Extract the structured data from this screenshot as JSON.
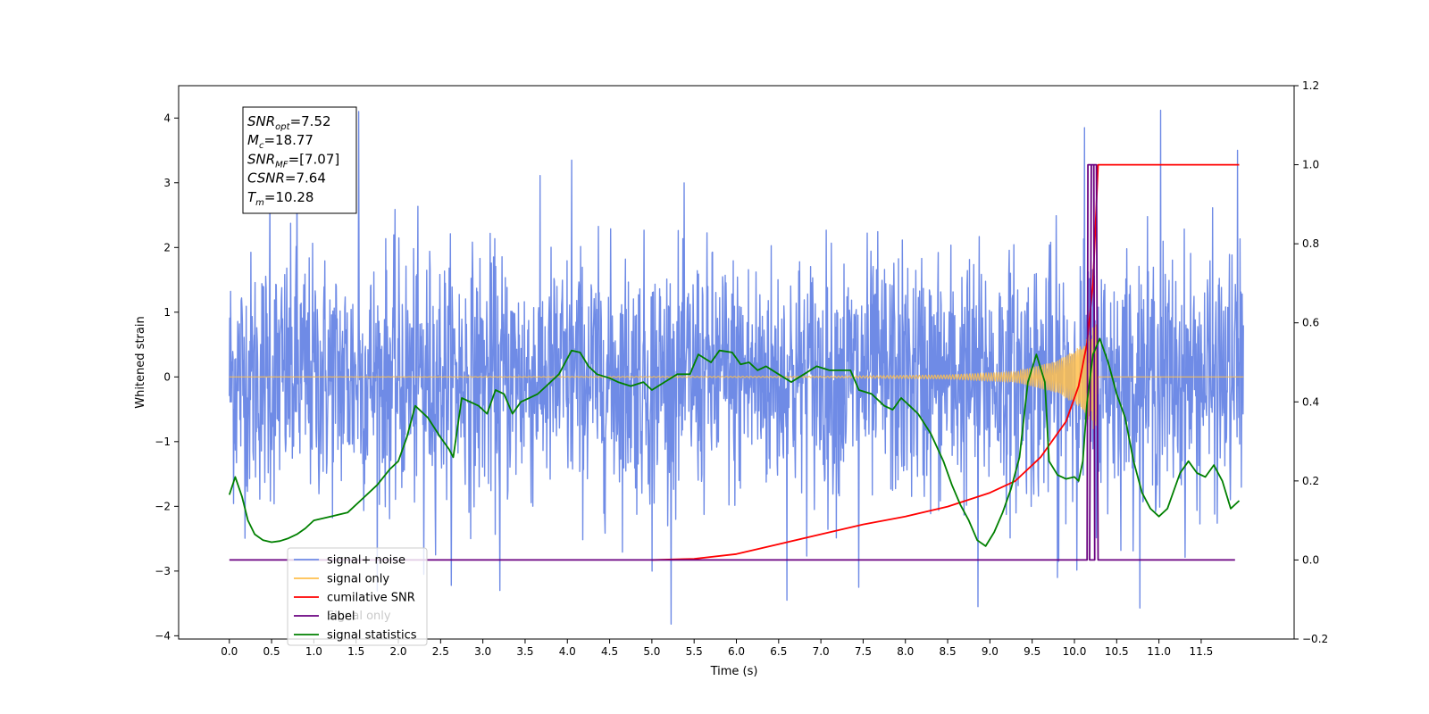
{
  "chart_data": {
    "type": "line",
    "xlabel": "Time (s)",
    "ylabel": "Whitened strain",
    "xlim": [
      -0.6,
      12.6
    ],
    "ylim": [
      -4.05,
      4.5
    ],
    "y2lim": [
      -0.2,
      1.2
    ],
    "x_ticks": [
      0.0,
      0.5,
      1.0,
      1.5,
      2.0,
      2.5,
      3.0,
      3.5,
      4.0,
      4.5,
      5.0,
      5.5,
      6.0,
      6.5,
      7.0,
      7.5,
      8.0,
      8.5,
      9.0,
      9.5,
      10.0,
      10.5,
      11.0,
      11.5
    ],
    "x_tick_labels": [
      "0.0",
      "0.5",
      "1.0",
      "1.5",
      "2.0",
      "2.5",
      "3.0",
      "3.5",
      "4.0",
      "4.5",
      "5.0",
      "5.5",
      "6.0",
      "6.5",
      "7.0",
      "7.5",
      "8.0",
      "8.5",
      "9.0",
      "9.5",
      "10.0",
      "10.5",
      "11.0",
      "11.5"
    ],
    "y_ticks": [
      -4,
      -3,
      -2,
      -1,
      0,
      1,
      2,
      3,
      4
    ],
    "y_tick_labels": [
      "−4",
      "−3",
      "−2",
      "−1",
      "0",
      "1",
      "2",
      "3",
      "4"
    ],
    "y2_ticks": [
      -0.2,
      0.0,
      0.2,
      0.4,
      0.6,
      0.8,
      1.0,
      1.2
    ],
    "y2_tick_labels": [
      "−0.2",
      "0.0",
      "0.2",
      "0.4",
      "0.6",
      "0.8",
      "1.0",
      "1.2"
    ],
    "grid": false,
    "legend_position": "lower-left",
    "legend": [
      {
        "name": "signal+ noise",
        "color": "#6f8be6"
      },
      {
        "name": "signal only",
        "color": "#ffbf4d"
      },
      {
        "name": "cumilative SNR",
        "color": "#ff0000"
      },
      {
        "name": "label",
        "color": "#6a0080"
      },
      {
        "name": "signal statistics",
        "color": "#008000"
      }
    ],
    "legend_hidden_text": "Signal only",
    "annotation": {
      "lines": [
        {
          "base": "SNR",
          "sub": "opt",
          "rest": "=7.52"
        },
        {
          "base": "M",
          "sub": "c",
          "rest": "=18.77"
        },
        {
          "base": "SNR",
          "sub": "MF",
          "rest": "=[7.07]"
        },
        {
          "base": "CSNR",
          "sub": "",
          "rest": "=7.64"
        },
        {
          "base": "T",
          "sub": "m",
          "rest": "=10.28"
        }
      ]
    },
    "series": [
      {
        "name": "signal+ noise",
        "axis": "left",
        "color": "#6f8be6",
        "x_range": [
          0.0,
          12.0
        ],
        "envelope_typical": [
          -1.8,
          1.8
        ],
        "peaks": [
          {
            "x": 0.48,
            "y": 3.0
          },
          {
            "x": 0.8,
            "y": 3.2
          },
          {
            "x": 1.53,
            "y": 4.1
          },
          {
            "x": 2.3,
            "y": -3.05
          },
          {
            "x": 3.2,
            "y": -3.3
          },
          {
            "x": 4.05,
            "y": 3.35
          },
          {
            "x": 6.6,
            "y": -3.45
          },
          {
            "x": 7.45,
            "y": -3.25
          },
          {
            "x": 8.86,
            "y": -3.55
          },
          {
            "x": 10.12,
            "y": 3.85
          },
          {
            "x": 11.02,
            "y": 4.12
          },
          {
            "x": 11.93,
            "y": 3.5
          },
          {
            "x": 9.8,
            "y": -3.1
          },
          {
            "x": 5.0,
            "y": -3.0
          }
        ]
      },
      {
        "name": "signal only",
        "axis": "left",
        "color": "#ffbf4d",
        "note": "chirp, amplitude grows toward merger",
        "merger_time": 10.28,
        "amplitude_points": [
          [
            0.0,
            0.0
          ],
          [
            7.0,
            0.01
          ],
          [
            8.5,
            0.03
          ],
          [
            9.3,
            0.08
          ],
          [
            9.8,
            0.25
          ],
          [
            10.1,
            0.5
          ],
          [
            10.26,
            0.9
          ],
          [
            10.3,
            0.0
          ],
          [
            12.0,
            0.0
          ]
        ]
      },
      {
        "name": "cumilative SNR",
        "axis": "right",
        "color": "#ff0000",
        "points": [
          [
            5.0,
            0.0
          ],
          [
            5.5,
            0.003
          ],
          [
            6.0,
            0.015
          ],
          [
            6.5,
            0.04
          ],
          [
            7.0,
            0.065
          ],
          [
            7.5,
            0.09
          ],
          [
            8.0,
            0.11
          ],
          [
            8.5,
            0.135
          ],
          [
            9.0,
            0.17
          ],
          [
            9.3,
            0.2
          ],
          [
            9.6,
            0.26
          ],
          [
            9.9,
            0.35
          ],
          [
            10.05,
            0.44
          ],
          [
            10.15,
            0.55
          ],
          [
            10.22,
            0.7
          ],
          [
            10.26,
            0.9
          ],
          [
            10.28,
            1.0
          ],
          [
            11.95,
            1.0
          ]
        ]
      },
      {
        "name": "label",
        "axis": "right",
        "color": "#6a0080",
        "points": [
          [
            0.0,
            0.0
          ],
          [
            10.15,
            0.0
          ],
          [
            10.16,
            1.0
          ],
          [
            10.23,
            1.0
          ],
          [
            10.24,
            0.0
          ],
          [
            10.18,
            0.0
          ],
          [
            10.2,
            1.0
          ],
          [
            10.26,
            1.0
          ],
          [
            10.28,
            0.0
          ],
          [
            11.9,
            0.0
          ]
        ]
      },
      {
        "name": "signal statistics",
        "axis": "right",
        "color": "#008000",
        "points": [
          [
            0.0,
            0.165
          ],
          [
            0.07,
            0.21
          ],
          [
            0.15,
            0.16
          ],
          [
            0.22,
            0.1
          ],
          [
            0.3,
            0.065
          ],
          [
            0.4,
            0.05
          ],
          [
            0.5,
            0.045
          ],
          [
            0.6,
            0.048
          ],
          [
            0.7,
            0.055
          ],
          [
            0.8,
            0.065
          ],
          [
            0.9,
            0.08
          ],
          [
            1.0,
            0.1
          ],
          [
            1.2,
            0.11
          ],
          [
            1.4,
            0.12
          ],
          [
            1.6,
            0.16
          ],
          [
            1.75,
            0.19
          ],
          [
            1.9,
            0.23
          ],
          [
            2.0,
            0.25
          ],
          [
            2.1,
            0.31
          ],
          [
            2.2,
            0.39
          ],
          [
            2.35,
            0.36
          ],
          [
            2.5,
            0.31
          ],
          [
            2.6,
            0.28
          ],
          [
            2.65,
            0.26
          ],
          [
            2.75,
            0.41
          ],
          [
            2.85,
            0.4
          ],
          [
            2.95,
            0.39
          ],
          [
            3.05,
            0.37
          ],
          [
            3.15,
            0.43
          ],
          [
            3.25,
            0.42
          ],
          [
            3.35,
            0.37
          ],
          [
            3.45,
            0.4
          ],
          [
            3.55,
            0.41
          ],
          [
            3.65,
            0.42
          ],
          [
            3.75,
            0.44
          ],
          [
            3.9,
            0.47
          ],
          [
            4.05,
            0.53
          ],
          [
            4.15,
            0.525
          ],
          [
            4.25,
            0.49
          ],
          [
            4.35,
            0.47
          ],
          [
            4.5,
            0.46
          ],
          [
            4.6,
            0.45
          ],
          [
            4.75,
            0.44
          ],
          [
            4.9,
            0.45
          ],
          [
            5.0,
            0.43
          ],
          [
            5.15,
            0.45
          ],
          [
            5.3,
            0.47
          ],
          [
            5.45,
            0.47
          ],
          [
            5.55,
            0.52
          ],
          [
            5.7,
            0.5
          ],
          [
            5.8,
            0.53
          ],
          [
            5.95,
            0.525
          ],
          [
            6.05,
            0.495
          ],
          [
            6.15,
            0.5
          ],
          [
            6.25,
            0.48
          ],
          [
            6.35,
            0.49
          ],
          [
            6.5,
            0.47
          ],
          [
            6.65,
            0.45
          ],
          [
            6.8,
            0.47
          ],
          [
            6.95,
            0.49
          ],
          [
            7.1,
            0.48
          ],
          [
            7.25,
            0.48
          ],
          [
            7.35,
            0.48
          ],
          [
            7.45,
            0.43
          ],
          [
            7.6,
            0.42
          ],
          [
            7.75,
            0.39
          ],
          [
            7.85,
            0.38
          ],
          [
            7.95,
            0.41
          ],
          [
            8.05,
            0.39
          ],
          [
            8.15,
            0.37
          ],
          [
            8.3,
            0.32
          ],
          [
            8.45,
            0.25
          ],
          [
            8.55,
            0.19
          ],
          [
            8.65,
            0.14
          ],
          [
            8.75,
            0.1
          ],
          [
            8.85,
            0.05
          ],
          [
            8.95,
            0.035
          ],
          [
            9.05,
            0.07
          ],
          [
            9.15,
            0.12
          ],
          [
            9.25,
            0.18
          ],
          [
            9.35,
            0.26
          ],
          [
            9.45,
            0.45
          ],
          [
            9.55,
            0.52
          ],
          [
            9.65,
            0.45
          ],
          [
            9.7,
            0.25
          ],
          [
            9.8,
            0.215
          ],
          [
            9.9,
            0.205
          ],
          [
            10.0,
            0.21
          ],
          [
            10.05,
            0.2
          ],
          [
            10.1,
            0.25
          ],
          [
            10.15,
            0.4
          ],
          [
            10.22,
            0.52
          ],
          [
            10.3,
            0.56
          ],
          [
            10.4,
            0.5
          ],
          [
            10.5,
            0.42
          ],
          [
            10.6,
            0.36
          ],
          [
            10.7,
            0.25
          ],
          [
            10.8,
            0.17
          ],
          [
            10.9,
            0.13
          ],
          [
            11.0,
            0.11
          ],
          [
            11.1,
            0.13
          ],
          [
            11.25,
            0.22
          ],
          [
            11.35,
            0.25
          ],
          [
            11.45,
            0.22
          ],
          [
            11.55,
            0.21
          ],
          [
            11.65,
            0.24
          ],
          [
            11.75,
            0.2
          ],
          [
            11.85,
            0.13
          ],
          [
            11.95,
            0.15
          ]
        ]
      }
    ]
  }
}
